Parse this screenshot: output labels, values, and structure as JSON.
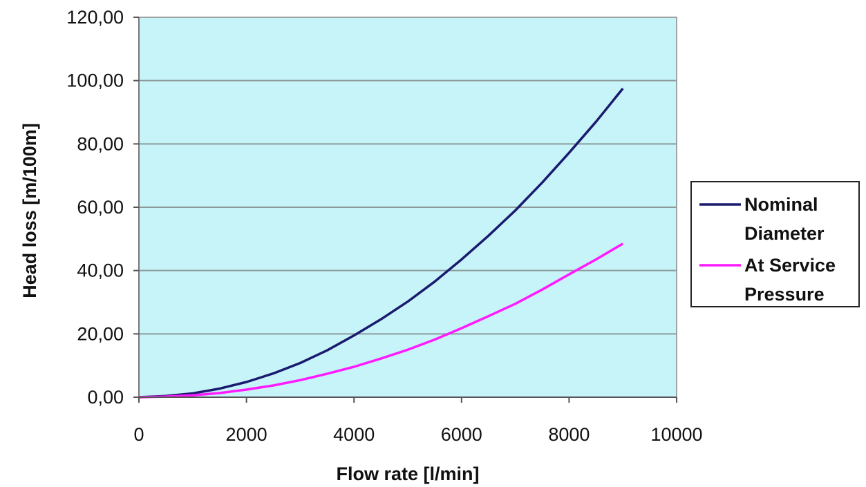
{
  "chart_data": {
    "type": "line",
    "title": "",
    "xlabel": "Flow rate [l/min]",
    "ylabel": "Head loss [m/100m]",
    "xlim": [
      0,
      10000
    ],
    "ylim": [
      0,
      120
    ],
    "x_ticks": [
      0,
      2000,
      4000,
      6000,
      8000,
      10000
    ],
    "x_tick_labels": [
      "0",
      "2000",
      "4000",
      "6000",
      "8000",
      "10000"
    ],
    "y_ticks": [
      0,
      20,
      40,
      60,
      80,
      100,
      120
    ],
    "y_tick_labels": [
      "0,00",
      "20,00",
      "40,00",
      "60,00",
      "80,00",
      "100,00",
      "120,00"
    ],
    "grid": "horizontal",
    "legend_position": "right",
    "plot_background": "#c6f4f8",
    "series": [
      {
        "name": "Nominal Diameter",
        "name_lines": [
          "Nominal",
          "Diameter"
        ],
        "color": "#1a1a6e",
        "x": [
          0,
          500,
          1000,
          1500,
          2000,
          2500,
          3000,
          3500,
          4000,
          4500,
          5000,
          5500,
          6000,
          6500,
          7000,
          7500,
          8000,
          8500,
          9000
        ],
        "y": [
          0,
          0.4,
          1.2,
          2.7,
          4.8,
          7.5,
          10.8,
          14.8,
          19.5,
          24.6,
          30.2,
          36.5,
          43.5,
          51,
          59,
          67.8,
          77.2,
          87,
          97.5
        ]
      },
      {
        "name": "At Service Pressure",
        "name_lines": [
          "At Service",
          "Pressure"
        ],
        "color": "#ff1aff",
        "x": [
          0,
          500,
          1000,
          1500,
          2000,
          2500,
          3000,
          3500,
          4000,
          4500,
          5000,
          5500,
          6000,
          6500,
          7000,
          7500,
          8000,
          8500,
          9000
        ],
        "y": [
          0,
          0.2,
          0.6,
          1.3,
          2.4,
          3.7,
          5.4,
          7.4,
          9.6,
          12.2,
          15,
          18.2,
          21.8,
          25.6,
          29.5,
          34,
          38.8,
          43.5,
          48.5
        ]
      }
    ]
  }
}
